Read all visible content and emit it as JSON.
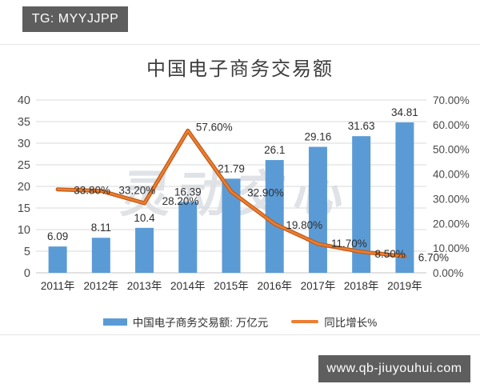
{
  "top_badge": {
    "text": "TG: MYYJJPP"
  },
  "bottom_badge": {
    "text": "www.qb-jiuyouhui.com"
  },
  "watermark": {
    "text": "灵动交心"
  },
  "colors": {
    "bar": "#5b9bd5",
    "line": "#ed7d31",
    "line_edge": "#bd5b16",
    "badge_bg": "#5e5e5e"
  },
  "chart_data": {
    "type": "bar",
    "subtype": "bar-line-combo",
    "title": "中国电子商务交易额",
    "categories": [
      "2011年",
      "2012年",
      "2013年",
      "2014年",
      "2015年",
      "2016年",
      "2017年",
      "2018年",
      "2019年"
    ],
    "series": [
      {
        "name": "中国电子商务交易额: 万亿元",
        "type": "bar",
        "axis": "left",
        "color": "#5b9bd5",
        "values": [
          6.09,
          8.11,
          10.4,
          16.39,
          21.79,
          26.1,
          29.16,
          31.63,
          34.81
        ],
        "labels": [
          "6.09",
          "8.11",
          "10.4",
          "16.39",
          "21.79",
          "26.1",
          "29.16",
          "31.63",
          "34.81"
        ]
      },
      {
        "name": "同比增长%",
        "type": "line",
        "axis": "right",
        "color": "#ed7d31",
        "values": [
          33.8,
          33.2,
          28.2,
          57.6,
          32.9,
          19.8,
          11.7,
          8.5,
          6.7
        ],
        "labels": [
          "33.80%",
          "33.20%",
          "28.20%",
          "57.60%",
          "32.90%",
          "19.80%",
          "11.70%",
          "8.50%",
          "6.70%"
        ]
      }
    ],
    "left_axis": {
      "min": 0,
      "max": 40,
      "step": 5,
      "ticks": [
        "40",
        "35",
        "30",
        "25",
        "20",
        "15",
        "10",
        "5",
        "0"
      ]
    },
    "right_axis": {
      "min": 0,
      "max": 70,
      "step": 10,
      "ticks": [
        "70.00%",
        "60.00%",
        "50.00%",
        "40.00%",
        "30.00%",
        "20.00%",
        "10.00%",
        "0.00%"
      ]
    },
    "grid": true,
    "legend_position": "bottom"
  }
}
